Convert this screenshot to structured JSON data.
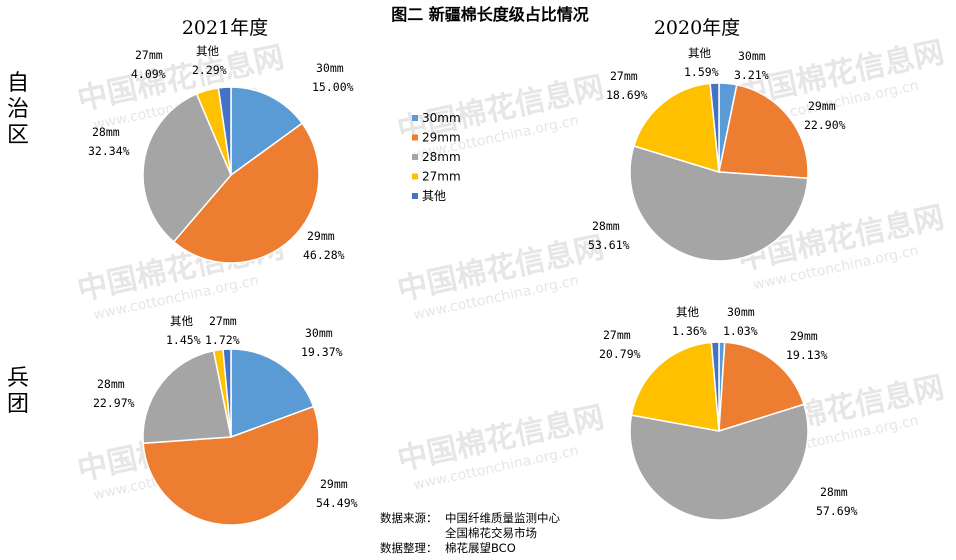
{
  "title": "图二 新疆棉长度级占比情况",
  "col_titles": [
    "2021年度",
    "2020年度"
  ],
  "row_labels": [
    "自治区",
    "兵团"
  ],
  "legend": [
    {
      "label": "30mm",
      "color": "#5b9bd5"
    },
    {
      "label": "29mm",
      "color": "#ed7d31"
    },
    {
      "label": "28mm",
      "color": "#a5a5a5"
    },
    {
      "label": "27mm",
      "color": "#ffc000"
    },
    {
      "label": "其他",
      "color": "#4472c4"
    }
  ],
  "watermark": {
    "text": "中国棉花信息网",
    "url": "www.cottonchina.org.cn"
  },
  "source": {
    "label1": "数据来源：",
    "lines1": [
      "中国纤维质量监测中心",
      "全国棉花交易市场"
    ],
    "label2": "数据整理：",
    "line2": "棉花展望BCO"
  },
  "chart_data": [
    {
      "type": "pie",
      "title": "2021年度",
      "row": "自治区",
      "slices": [
        {
          "name": "30mm",
          "value": 15.0,
          "label": "15.00%"
        },
        {
          "name": "29mm",
          "value": 46.28,
          "label": "46.28%"
        },
        {
          "name": "28mm",
          "value": 32.34,
          "label": "32.34%"
        },
        {
          "name": "27mm",
          "value": 4.09,
          "label": "4.09%"
        },
        {
          "name": "其他",
          "value": 2.29,
          "label": "2.29%"
        }
      ]
    },
    {
      "type": "pie",
      "title": "2020年度",
      "row": "自治区",
      "slices": [
        {
          "name": "30mm",
          "value": 3.21,
          "label": "3.21%"
        },
        {
          "name": "29mm",
          "value": 22.9,
          "label": "22.90%"
        },
        {
          "name": "28mm",
          "value": 53.61,
          "label": "53.61%"
        },
        {
          "name": "27mm",
          "value": 18.69,
          "label": "18.69%"
        },
        {
          "name": "其他",
          "value": 1.59,
          "label": "1.59%"
        }
      ]
    },
    {
      "type": "pie",
      "title": "2021年度",
      "row": "兵团",
      "slices": [
        {
          "name": "30mm",
          "value": 19.37,
          "label": "19.37%"
        },
        {
          "name": "29mm",
          "value": 54.49,
          "label": "54.49%"
        },
        {
          "name": "28mm",
          "value": 22.97,
          "label": "22.97%"
        },
        {
          "name": "27mm",
          "value": 1.72,
          "label": "1.72%"
        },
        {
          "name": "其他",
          "value": 1.45,
          "label": "1.45%"
        }
      ]
    },
    {
      "type": "pie",
      "title": "2020年度",
      "row": "兵团",
      "slices": [
        {
          "name": "30mm",
          "value": 1.03,
          "label": "1.03%"
        },
        {
          "name": "29mm",
          "value": 19.13,
          "label": "19.13%"
        },
        {
          "name": "28mm",
          "value": 57.69,
          "label": "57.69%"
        },
        {
          "name": "27mm",
          "value": 20.79,
          "label": "20.79%"
        },
        {
          "name": "其他",
          "value": 1.36,
          "label": "1.36%"
        }
      ]
    }
  ]
}
